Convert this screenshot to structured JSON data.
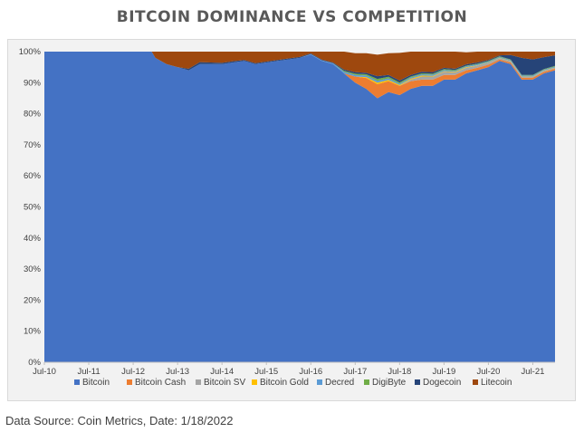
{
  "title": "BITCOIN DOMINANCE VS COMPETITION",
  "source": "Data Source: Coin Metrics, Date: 1/18/2022",
  "chart_data": {
    "type": "area",
    "stacked": true,
    "title": "BITCOIN DOMINANCE VS COMPETITION",
    "xlabel": "",
    "ylabel": "",
    "ylim": [
      0,
      100
    ],
    "yticks": [
      "0%",
      "10%",
      "20%",
      "30%",
      "40%",
      "50%",
      "60%",
      "70%",
      "80%",
      "90%",
      "100%"
    ],
    "xticks": [
      "Jul-10",
      "Jul-11",
      "Jul-12",
      "Jul-13",
      "Jul-14",
      "Jul-15",
      "Jul-16",
      "Jul-17",
      "Jul-18",
      "Jul-19",
      "Jul-20",
      "Jul-21"
    ],
    "xlim": [
      "2010-07",
      "2022-01"
    ],
    "grid": false,
    "legend": "bottom",
    "x": [
      "2010-07",
      "2012-12",
      "2013-01",
      "2013-04",
      "2013-07",
      "2013-10",
      "2014-01",
      "2014-04",
      "2014-07",
      "2014-10",
      "2015-01",
      "2015-04",
      "2015-07",
      "2015-10",
      "2016-01",
      "2016-04",
      "2016-07",
      "2016-10",
      "2017-01",
      "2017-04",
      "2017-07",
      "2017-10",
      "2018-01",
      "2018-04",
      "2018-07",
      "2018-10",
      "2019-01",
      "2019-04",
      "2019-07",
      "2019-10",
      "2020-01",
      "2020-04",
      "2020-07",
      "2020-10",
      "2021-01",
      "2021-04",
      "2021-07",
      "2021-10",
      "2022-01"
    ],
    "series": [
      {
        "name": "Bitcoin",
        "color": "#4472c4",
        "values": [
          100,
          100,
          98,
          96,
          95,
          94,
          96,
          96,
          96,
          96.5,
          97,
          96,
          96.5,
          97,
          97.5,
          98,
          99,
          97,
          96,
          93,
          90,
          88,
          85,
          87,
          86,
          88,
          89,
          89,
          91,
          91,
          93,
          94,
          95,
          97,
          96,
          91,
          91,
          93,
          94
        ]
      },
      {
        "name": "Bitcoin Cash",
        "color": "#ed7d31",
        "values": [
          0,
          0,
          0,
          0,
          0,
          0,
          0,
          0,
          0,
          0,
          0,
          0,
          0,
          0,
          0,
          0,
          0,
          0,
          0,
          0,
          2,
          3.5,
          4.5,
          3.5,
          3,
          2.5,
          2,
          2,
          1.5,
          1.5,
          1,
          0.8,
          0.8,
          0.5,
          0.5,
          0.6,
          0.6,
          0.5,
          0.5
        ]
      },
      {
        "name": "Bitcoin SV",
        "color": "#a5a5a5",
        "values": [
          0,
          0,
          0,
          0,
          0,
          0,
          0,
          0,
          0,
          0,
          0,
          0,
          0,
          0,
          0,
          0,
          0,
          0,
          0,
          0,
          0,
          0,
          0,
          0,
          0,
          0.5,
          1,
          1,
          1,
          0.8,
          0.8,
          0.7,
          0.6,
          0.4,
          0.4,
          0.3,
          0.3,
          0.3,
          0.3
        ]
      },
      {
        "name": "Bitcoin Gold",
        "color": "#ffc000",
        "values": [
          0,
          0,
          0,
          0,
          0,
          0,
          0,
          0,
          0,
          0,
          0,
          0,
          0,
          0,
          0,
          0,
          0,
          0,
          0,
          0,
          0,
          0.3,
          0.5,
          0.4,
          0.3,
          0.3,
          0.3,
          0.2,
          0.2,
          0.2,
          0.2,
          0.1,
          0.1,
          0.1,
          0.1,
          0.1,
          0.1,
          0.1,
          0.1
        ]
      },
      {
        "name": "Decred",
        "color": "#5b9bd5",
        "values": [
          0,
          0,
          0,
          0,
          0,
          0,
          0,
          0,
          0,
          0,
          0,
          0,
          0,
          0,
          0,
          0,
          0.2,
          0.2,
          0.3,
          0.5,
          0.5,
          0.5,
          0.6,
          0.5,
          0.4,
          0.4,
          0.4,
          0.4,
          0.4,
          0.3,
          0.3,
          0.3,
          0.3,
          0.3,
          0.3,
          0.3,
          0.3,
          0.3,
          0.3
        ]
      },
      {
        "name": "DigiByte",
        "color": "#70ad47",
        "values": [
          0,
          0,
          0,
          0,
          0,
          0,
          0,
          0,
          0,
          0,
          0,
          0,
          0,
          0,
          0,
          0,
          0,
          0,
          0,
          0.3,
          0.4,
          0.4,
          0.6,
          0.5,
          0.4,
          0.3,
          0.3,
          0.3,
          0.3,
          0.3,
          0.2,
          0.2,
          0.2,
          0.2,
          0.2,
          0.2,
          0.2,
          0.2,
          0.2
        ]
      },
      {
        "name": "Dogecoin",
        "color": "#264478",
        "values": [
          0,
          0,
          0,
          0,
          0,
          0.5,
          0.6,
          0.5,
          0.4,
          0.4,
          0.3,
          0.3,
          0.3,
          0.3,
          0.3,
          0.3,
          0.2,
          0.2,
          0.2,
          0.4,
          0.5,
          0.5,
          0.9,
          0.6,
          0.6,
          0.5,
          0.5,
          0.5,
          0.4,
          0.4,
          0.4,
          0.4,
          0.3,
          0.3,
          1.4,
          5.5,
          5,
          3.8,
          3.4
        ]
      },
      {
        "name": "Litecoin",
        "color": "#9e480e",
        "values": [
          0,
          0,
          2,
          4,
          5,
          5.5,
          3.4,
          3.5,
          3.6,
          3.1,
          2.7,
          3.7,
          3.2,
          2.7,
          2.2,
          1.7,
          0.6,
          2.6,
          3.5,
          5.8,
          6.1,
          6.3,
          6.9,
          7,
          8.9,
          7.5,
          6.5,
          6.6,
          5.2,
          5.5,
          3.9,
          3.5,
          2.7,
          1.2,
          1.1,
          2,
          2.5,
          1.8,
          1.2
        ]
      }
    ]
  }
}
